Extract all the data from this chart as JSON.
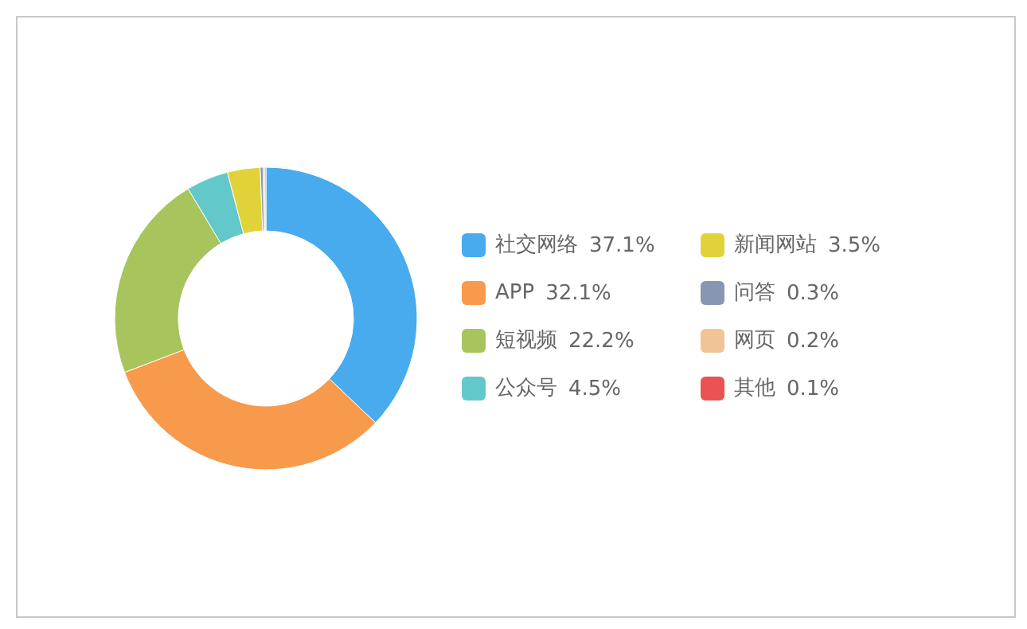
{
  "chart_data": {
    "type": "donut",
    "categories": [
      "社交网络",
      "APP",
      "短视频",
      "公众号",
      "新闻网站",
      "问答",
      "网页",
      "其他"
    ],
    "values": [
      37.1,
      32.1,
      22.2,
      4.5,
      3.5,
      0.3,
      0.2,
      0.1
    ],
    "colors": [
      "#47abee",
      "#f89a4b",
      "#a7c55c",
      "#63c8c9",
      "#e2d23a",
      "#8897b1",
      "#f1c495",
      "#e95353"
    ],
    "value_labels": [
      "37.1%",
      "32.1%",
      "22.2%",
      "4.5%",
      "3.5%",
      "0.3%",
      "0.2%",
      "0.1%"
    ],
    "legend": "right"
  }
}
